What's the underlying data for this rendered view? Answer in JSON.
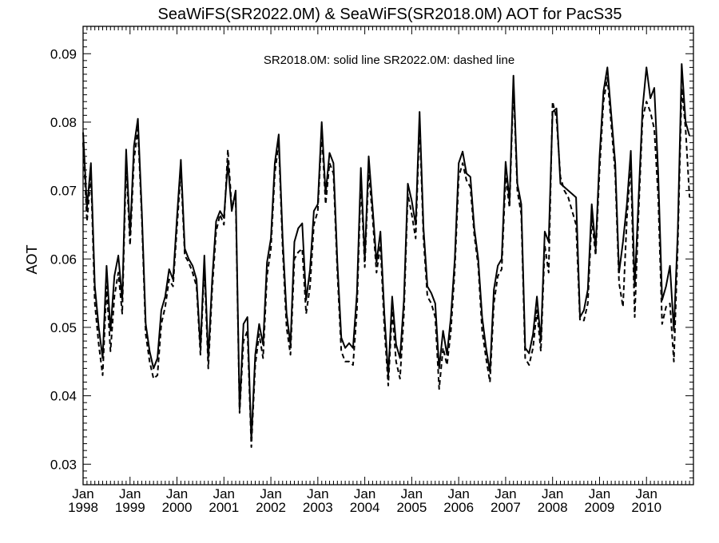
{
  "chart_data": {
    "type": "line",
    "title": "SeaWiFS(SR2022.0M) & SeaWiFS(SR2018.0M)  AOT for PacS35",
    "annotation": "SR2018.0M: solid line   SR2022.0M: dashed line",
    "ylabel": "AOT",
    "xlabel": "",
    "ylim": [
      0.027,
      0.094
    ],
    "xlim": [
      1998.0,
      2011.0
    ],
    "y_ticks": [
      0.03,
      0.04,
      0.05,
      0.06,
      0.07,
      0.08,
      0.09
    ],
    "y_tick_labels": [
      "0.03",
      "0.04",
      "0.05",
      "0.06",
      "0.07",
      "0.08",
      "0.09"
    ],
    "x_ticks": [
      1998,
      1999,
      2000,
      2001,
      2002,
      2003,
      2004,
      2005,
      2006,
      2007,
      2008,
      2009,
      2010
    ],
    "x_tick_labels_month": [
      "Jan",
      "Jan",
      "Jan",
      "Jan",
      "Jan",
      "Jan",
      "Jan",
      "Jan",
      "Jan",
      "Jan",
      "Jan",
      "Jan",
      "Jan"
    ],
    "x_tick_labels_year": [
      "1998",
      "1999",
      "2000",
      "2001",
      "2002",
      "2003",
      "2004",
      "2005",
      "2006",
      "2007",
      "2008",
      "2009",
      "2010"
    ],
    "grid": false,
    "x_time": [
      "1998-01",
      "1998-02",
      "1998-03",
      "1998-04",
      "1998-05",
      "1998-06",
      "1998-07",
      "1998-08",
      "1998-09",
      "1998-10",
      "1998-11",
      "1998-12",
      "1999-01",
      "1999-02",
      "1999-03",
      "1999-04",
      "1999-05",
      "1999-06",
      "1999-07",
      "1999-08",
      "1999-09",
      "1999-10",
      "1999-11",
      "1999-12",
      "2000-01",
      "2000-02",
      "2000-03",
      "2000-04",
      "2000-05",
      "2000-06",
      "2000-07",
      "2000-08",
      "2000-09",
      "2000-10",
      "2000-11",
      "2000-12",
      "2001-01",
      "2001-02",
      "2001-03",
      "2001-04",
      "2001-05",
      "2001-06",
      "2001-07",
      "2001-08",
      "2001-09",
      "2001-10",
      "2001-11",
      "2001-12",
      "2002-01",
      "2002-02",
      "2002-03",
      "2002-04",
      "2002-05",
      "2002-06",
      "2002-07",
      "2002-08",
      "2002-09",
      "2002-10",
      "2002-11",
      "2002-12",
      "2003-01",
      "2003-02",
      "2003-03",
      "2003-04",
      "2003-05",
      "2003-06",
      "2003-07",
      "2003-08",
      "2003-09",
      "2003-10",
      "2003-11",
      "2003-12",
      "2004-01",
      "2004-02",
      "2004-03",
      "2004-04",
      "2004-05",
      "2004-06",
      "2004-07",
      "2004-08",
      "2004-09",
      "2004-10",
      "2004-11",
      "2004-12",
      "2005-01",
      "2005-02",
      "2005-03",
      "2005-04",
      "2005-05",
      "2005-06",
      "2005-07",
      "2005-08",
      "2005-09",
      "2005-10",
      "2005-11",
      "2005-12",
      "2006-01",
      "2006-02",
      "2006-03",
      "2006-04",
      "2006-05",
      "2006-06",
      "2006-07",
      "2006-08",
      "2006-09",
      "2006-10",
      "2006-11",
      "2006-12",
      "2007-01",
      "2007-02",
      "2007-03",
      "2007-04",
      "2007-05",
      "2007-06",
      "2007-07",
      "2007-08",
      "2007-09",
      "2007-10",
      "2007-11",
      "2007-12",
      "2008-01",
      "2008-02",
      "2008-03",
      "2008-04",
      "2008-05",
      "2008-06",
      "2008-07",
      "2008-08",
      "2008-09",
      "2008-10",
      "2008-11",
      "2008-12",
      "2009-01",
      "2009-02",
      "2009-03",
      "2009-04",
      "2009-05",
      "2009-06",
      "2009-07",
      "2009-08",
      "2009-09",
      "2009-10",
      "2009-11",
      "2009-12",
      "2010-01",
      "2010-02",
      "2010-03",
      "2010-04",
      "2010-05",
      "2010-06",
      "2010-07",
      "2010-08",
      "2010-09",
      "2010-10",
      "2010-11",
      "2010-12"
    ],
    "series": [
      {
        "name": "SR2018.0M",
        "style": "solid",
        "color": "#000000",
        "values": [
          0.0785,
          0.0675,
          0.074,
          0.056,
          0.05,
          0.0455,
          0.059,
          0.0495,
          0.0575,
          0.0605,
          0.054,
          0.076,
          0.0635,
          0.0765,
          0.0805,
          0.067,
          0.0505,
          0.0465,
          0.044,
          0.0455,
          0.0525,
          0.0545,
          0.0585,
          0.057,
          0.066,
          0.0745,
          0.0615,
          0.06,
          0.059,
          0.057,
          0.047,
          0.0605,
          0.0455,
          0.057,
          0.0655,
          0.067,
          0.066,
          0.074,
          0.067,
          0.07,
          0.038,
          0.0505,
          0.0515,
          0.0335,
          0.046,
          0.0505,
          0.0475,
          0.0595,
          0.063,
          0.074,
          0.0782,
          0.063,
          0.052,
          0.0475,
          0.0625,
          0.0645,
          0.0652,
          0.054,
          0.0585,
          0.067,
          0.068,
          0.08,
          0.0695,
          0.0755,
          0.074,
          0.0595,
          0.0485,
          0.047,
          0.0477,
          0.047,
          0.055,
          0.0733,
          0.06,
          0.075,
          0.0675,
          0.0595,
          0.064,
          0.052,
          0.043,
          0.0545,
          0.0475,
          0.0455,
          0.054,
          0.071,
          0.0685,
          0.065,
          0.0815,
          0.0645,
          0.056,
          0.055,
          0.0535,
          0.044,
          0.0495,
          0.046,
          0.0515,
          0.06,
          0.074,
          0.0757,
          0.0725,
          0.072,
          0.0645,
          0.06,
          0.0515,
          0.047,
          0.0435,
          0.0555,
          0.059,
          0.06,
          0.0742,
          0.0685,
          0.0868,
          0.071,
          0.068,
          0.047,
          0.0462,
          0.049,
          0.0545,
          0.048,
          0.064,
          0.0625,
          0.0815,
          0.082,
          0.071,
          0.0705,
          0.07,
          0.0695,
          0.069,
          0.0515,
          0.0525,
          0.0555,
          0.068,
          0.0615,
          0.075,
          0.0845,
          0.088,
          0.081,
          0.074,
          0.058,
          0.0625,
          0.068,
          0.0758,
          0.056,
          0.069,
          0.082,
          0.088,
          0.0835,
          0.085,
          0.0725,
          0.054,
          0.056,
          0.059,
          0.0495,
          0.064,
          0.0885,
          0.08,
          0.078
        ]
      },
      {
        "name": "SR2022.0M",
        "style": "dashed",
        "color": "#000000",
        "values": [
          0.077,
          0.0655,
          0.0725,
          0.0535,
          0.0475,
          0.043,
          0.056,
          0.0465,
          0.0545,
          0.058,
          0.052,
          0.074,
          0.062,
          0.0745,
          0.079,
          0.066,
          0.049,
          0.045,
          0.0425,
          0.043,
          0.0505,
          0.053,
          0.057,
          0.056,
          0.0645,
          0.073,
          0.0605,
          0.0595,
          0.058,
          0.056,
          0.046,
          0.059,
          0.044,
          0.0555,
          0.064,
          0.0665,
          0.065,
          0.076,
          0.0675,
          0.069,
          0.0375,
          0.048,
          0.0495,
          0.0325,
          0.0445,
          0.049,
          0.0455,
          0.0575,
          0.0615,
          0.0725,
          0.077,
          0.0615,
          0.05,
          0.046,
          0.06,
          0.061,
          0.0615,
          0.052,
          0.056,
          0.065,
          0.067,
          0.0785,
          0.068,
          0.074,
          0.0725,
          0.058,
          0.0465,
          0.045,
          0.045,
          0.0445,
          0.0525,
          0.0715,
          0.0588,
          0.073,
          0.066,
          0.058,
          0.062,
          0.05,
          0.0415,
          0.0525,
          0.045,
          0.0425,
          0.052,
          0.0695,
          0.0665,
          0.063,
          0.08,
          0.063,
          0.0545,
          0.0535,
          0.0515,
          0.041,
          0.047,
          0.0445,
          0.0495,
          0.0585,
          0.072,
          0.074,
          0.0715,
          0.0705,
          0.0635,
          0.059,
          0.0495,
          0.0455,
          0.042,
          0.0535,
          0.0575,
          0.0585,
          0.072,
          0.0675,
          0.0855,
          0.07,
          0.0665,
          0.0455,
          0.0445,
          0.047,
          0.0525,
          0.0465,
          0.062,
          0.058,
          0.083,
          0.0805,
          0.072,
          0.07,
          0.069,
          0.067,
          0.065,
          0.051,
          0.051,
          0.0535,
          0.066,
          0.0605,
          0.073,
          0.083,
          0.0865,
          0.0795,
          0.0725,
          0.0565,
          0.053,
          0.066,
          0.074,
          0.0515,
          0.067,
          0.0805,
          0.083,
          0.0815,
          0.079,
          0.069,
          0.0505,
          0.053,
          0.0535,
          0.045,
          0.062,
          0.085,
          0.079,
          0.069
        ]
      }
    ]
  }
}
